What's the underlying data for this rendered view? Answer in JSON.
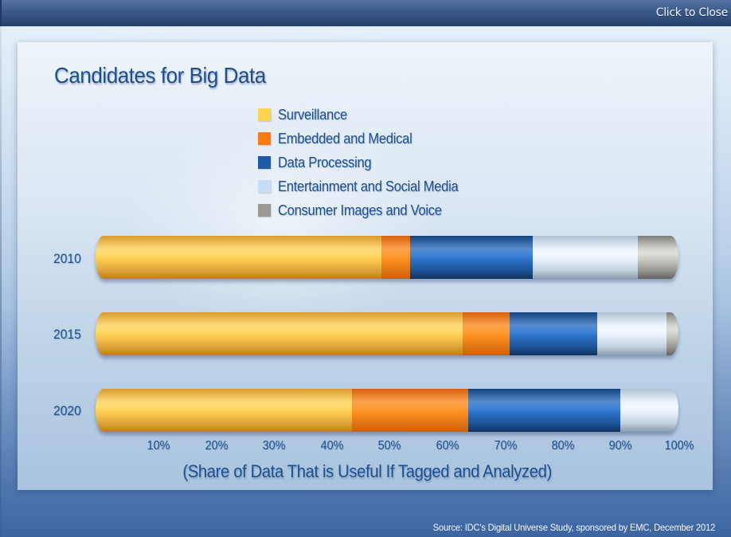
{
  "window": {
    "close_label": "Click to Close"
  },
  "chart_data": {
    "type": "bar",
    "orientation": "horizontal",
    "stacked": true,
    "title": "Candidates for Big Data",
    "xlabel": "(Share of Data That is Useful If Tagged and Analyzed)",
    "ylabel": "",
    "xlim": [
      0,
      100
    ],
    "x_ticks": [
      "10%",
      "20%",
      "30%",
      "40%",
      "50%",
      "60%",
      "70%",
      "80%",
      "90%",
      "100%"
    ],
    "categories": [
      "2010",
      "2015",
      "2020"
    ],
    "legend_position": "top-center",
    "grid": false,
    "series": [
      {
        "name": "Surveillance",
        "color": "#FFD34E",
        "values": [
          49,
          63,
          44
        ]
      },
      {
        "name": "Embedded and Medical",
        "color": "#FF7A0F",
        "values": [
          5,
          8,
          20
        ]
      },
      {
        "name": "Data Processing",
        "color": "#1E5AA8",
        "values": [
          21,
          15,
          26
        ]
      },
      {
        "name": "Entertainment and Social Media",
        "color": "#C6DDF3",
        "values": [
          18,
          12,
          10
        ]
      },
      {
        "name": "Consumer Images and Voice",
        "color": "#9B9994",
        "values": [
          7,
          2,
          0
        ]
      }
    ],
    "source": "Source: IDC's Digital Universe Study, sponsored by EMC, December 2012"
  },
  "legend": [
    {
      "label": "Surveillance",
      "color": "#FFD34E"
    },
    {
      "label": "Embedded and Medical",
      "color": "#FF7A0F"
    },
    {
      "label": "Data Processing",
      "color": "#1E5AA8"
    },
    {
      "label": "Entertainment and Social Media",
      "color": "#C6DDF3"
    },
    {
      "label": "Consumer Images and Voice",
      "color": "#9B9994"
    }
  ]
}
